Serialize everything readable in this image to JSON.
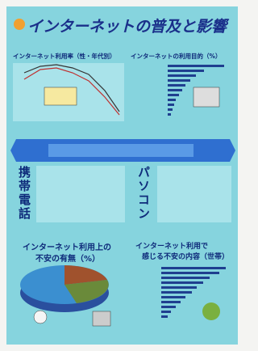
{
  "title": "インターネットの普及と影響",
  "sections": {
    "usage_rate": "インターネット利用率（性・年代別）",
    "purpose": "インターネットの利用目的（%）",
    "mobile": "携帯電話",
    "pc": "パソコン",
    "anxiety": [
      "インターネット利用上の",
      "不安の有無（%）"
    ],
    "anxiety_content": [
      "インターネット利用で",
      "感じる不安の内容（世帯）"
    ]
  }
}
